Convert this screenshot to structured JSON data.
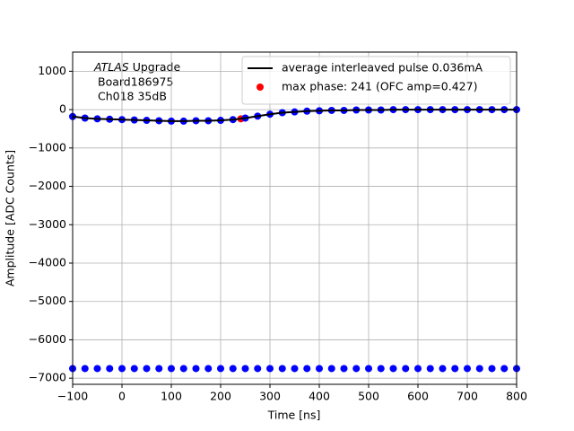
{
  "chart_data": {
    "type": "scatter",
    "annotation": {
      "italic": "ATLAS",
      "rest": "Upgrade",
      "lines": [
        "Board186975",
        "Ch018 35dB"
      ]
    },
    "xlabel": "Time [ns]",
    "ylabel": "Amplitude [ADC Counts]",
    "x": [
      -100,
      -75,
      -50,
      -25,
      0,
      25,
      50,
      75,
      100,
      125,
      150,
      175,
      200,
      225,
      250,
      275,
      300,
      325,
      350,
      375,
      400,
      425,
      450,
      475,
      500,
      525,
      550,
      575,
      600,
      625,
      650,
      675,
      700,
      725,
      750,
      775,
      800
    ],
    "series": [
      {
        "color": "#0000ff",
        "values": [
          -180,
          -220,
          -240,
          -250,
          -260,
          -270,
          -280,
          -290,
          -300,
          -300,
          -290,
          -290,
          -280,
          -260,
          -220,
          -170,
          -120,
          -80,
          -60,
          -40,
          -30,
          -20,
          -20,
          -10,
          -10,
          -10,
          0,
          0,
          0,
          0,
          0,
          0,
          0,
          0,
          0,
          0,
          0
        ]
      },
      {
        "color": "#0000ff",
        "values": [
          -6750,
          -6750,
          -6750,
          -6750,
          -6750,
          -6750,
          -6750,
          -6750,
          -6750,
          -6750,
          -6750,
          -6750,
          -6750,
          -6750,
          -6750,
          -6750,
          -6750,
          -6750,
          -6750,
          -6750,
          -6750,
          -6750,
          -6750,
          -6750,
          -6750,
          -6750,
          -6750,
          -6750,
          -6750,
          -6750,
          -6750,
          -6750,
          -6750,
          -6750,
          -6750,
          -6750,
          -6750
        ]
      },
      {
        "name": "average interleaved pulse 0.036mA",
        "color": "#000000",
        "style": "line",
        "values": [
          -180,
          -220,
          -240,
          -250,
          -260,
          -270,
          -280,
          -290,
          -300,
          -300,
          -290,
          -290,
          -280,
          -260,
          -220,
          -170,
          -120,
          -80,
          -60,
          -40,
          -30,
          -20,
          -20,
          -10,
          -10,
          -10,
          0,
          0,
          0,
          0,
          0,
          0,
          0,
          0,
          0,
          0,
          0
        ]
      },
      {
        "name": "max phase: 241 (OFC amp=0.427)",
        "color": "#ff0000",
        "x": [
          241
        ],
        "values": [
          -240
        ]
      }
    ],
    "xlim": [
      -100,
      800
    ],
    "xticks": [
      {
        "value": -100,
        "label": "−100"
      },
      0,
      100,
      200,
      300,
      400,
      500,
      600,
      700,
      800
    ],
    "ylim": [
      -7160,
      1500
    ],
    "yticks": [
      {
        "value": -7000,
        "label": "−7000"
      },
      {
        "value": -6000,
        "label": "−6000"
      },
      {
        "value": -5000,
        "label": "−5000"
      },
      {
        "value": -4000,
        "label": "−4000"
      },
      {
        "value": -3000,
        "label": "−3000"
      },
      {
        "value": -2000,
        "label": "−2000"
      },
      {
        "value": -1000,
        "label": "−1000"
      },
      0,
      1000
    ],
    "grid": true,
    "legend": "upper right"
  }
}
